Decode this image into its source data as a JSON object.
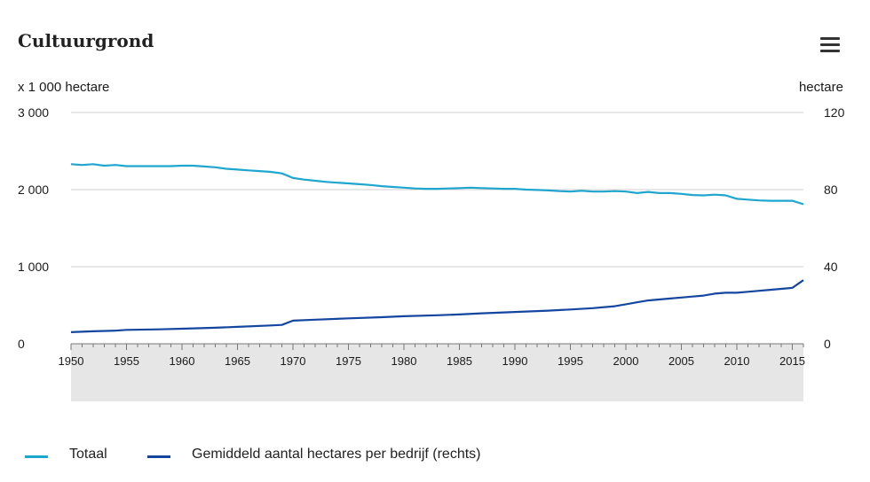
{
  "chart_data": {
    "type": "line",
    "title": "Cultuurgrond",
    "left_axis_unit": "x 1 000 hectare",
    "right_axis_unit": "hectare",
    "x_range": [
      1950,
      2016
    ],
    "x_ticks": [
      1950,
      1955,
      1960,
      1965,
      1970,
      1975,
      1980,
      1985,
      1990,
      1995,
      2000,
      2005,
      2010,
      2015
    ],
    "y_left": {
      "range": [
        0,
        3000
      ],
      "ticks": [
        0,
        1000,
        2000,
        3000
      ],
      "tick_labels": [
        "0",
        "1 000",
        "2 000",
        "3 000"
      ]
    },
    "y_right": {
      "range": [
        0,
        120
      ],
      "ticks": [
        0,
        40,
        80,
        120
      ],
      "tick_labels": [
        "0",
        "40",
        "80",
        "120"
      ]
    },
    "grid": true,
    "legend_position": "bottom-left",
    "series": [
      {
        "name": "Totaal",
        "axis": "left",
        "color": "#1ea6cf",
        "x": [
          1950,
          1951,
          1952,
          1953,
          1954,
          1955,
          1956,
          1957,
          1958,
          1959,
          1960,
          1961,
          1962,
          1963,
          1964,
          1965,
          1966,
          1967,
          1968,
          1969,
          1970,
          1971,
          1972,
          1973,
          1974,
          1975,
          1976,
          1977,
          1978,
          1979,
          1980,
          1981,
          1982,
          1983,
          1984,
          1985,
          1986,
          1987,
          1988,
          1989,
          1990,
          1991,
          1992,
          1993,
          1994,
          1995,
          1996,
          1997,
          1998,
          1999,
          2000,
          2001,
          2002,
          2003,
          2004,
          2005,
          2006,
          2007,
          2008,
          2009,
          2010,
          2011,
          2012,
          2013,
          2014,
          2015,
          2016
        ],
        "values": [
          2330,
          2320,
          2330,
          2310,
          2320,
          2305,
          2305,
          2305,
          2305,
          2305,
          2310,
          2310,
          2300,
          2290,
          2270,
          2260,
          2250,
          2240,
          2230,
          2210,
          2150,
          2130,
          2115,
          2100,
          2090,
          2080,
          2070,
          2060,
          2045,
          2035,
          2025,
          2015,
          2010,
          2010,
          2015,
          2020,
          2025,
          2020,
          2015,
          2010,
          2010,
          2000,
          1995,
          1990,
          1980,
          1975,
          1985,
          1975,
          1975,
          1980,
          1975,
          1955,
          1970,
          1955,
          1955,
          1945,
          1930,
          1925,
          1935,
          1925,
          1880,
          1870,
          1860,
          1855,
          1855,
          1855,
          1810
        ]
      },
      {
        "name": "Gemiddeld aantal hectares per bedrijf (rechts)",
        "axis": "right",
        "color": "#1446a0",
        "x": [
          1950,
          1952,
          1954,
          1955,
          1958,
          1960,
          1963,
          1965,
          1968,
          1969,
          1970,
          1972,
          1975,
          1978,
          1980,
          1983,
          1985,
          1987,
          1990,
          1993,
          1995,
          1997,
          1999,
          2000,
          2001,
          2002,
          2003,
          2004,
          2005,
          2006,
          2007,
          2008,
          2009,
          2010,
          2011,
          2012,
          2013,
          2014,
          2015,
          2016
        ],
        "values": [
          6,
          6.5,
          6.8,
          7.2,
          7.5,
          7.8,
          8.3,
          8.8,
          9.5,
          9.8,
          12,
          12.5,
          13.2,
          13.8,
          14.3,
          14.8,
          15.2,
          15.8,
          16.5,
          17.2,
          17.8,
          18.5,
          19.5,
          20.5,
          21.5,
          22.5,
          23,
          23.5,
          24,
          24.5,
          25,
          26,
          26.5,
          26.5,
          27,
          27.5,
          28,
          28.5,
          29,
          33
        ]
      }
    ]
  },
  "legend": [
    {
      "label": "Totaal",
      "color": "#1ea6cf"
    },
    {
      "label": "Gemiddeld aantal hectares per bedrijf (rechts)",
      "color": "#1446a0"
    }
  ],
  "menu": {
    "icon": "hamburger-menu-icon"
  }
}
